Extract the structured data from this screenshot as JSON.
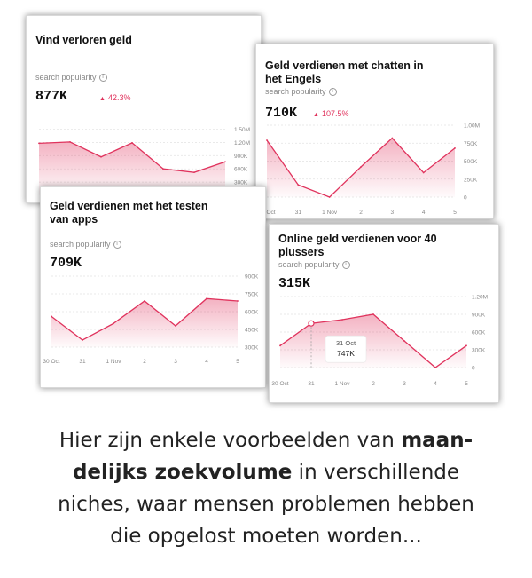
{
  "cards": [
    {
      "title": "Vind verloren geld",
      "metric_label": "search popularity",
      "value": "877K",
      "change": "42.3%",
      "chart_data": {
        "type": "area",
        "title": "Vind verloren geld",
        "y_tick_labels": [
          "1.50M",
          "1.20M",
          "900K",
          "600K",
          "300K"
        ],
        "y_ticks": [
          1500000,
          1200000,
          900000,
          600000,
          300000
        ],
        "ylim": [
          0,
          1650000
        ],
        "x_tick_labels": [],
        "x": [
          0,
          1,
          2,
          3,
          4,
          5,
          6
        ],
        "values": [
          1180000,
          1210000,
          870000,
          1190000,
          600000,
          520000,
          760000
        ],
        "color": "#e0335d",
        "grid": true
      }
    },
    {
      "title": "Geld verdienen met chatten in het Engels",
      "metric_label": "search popularity",
      "value": "710K",
      "change": "107.5%",
      "chart_data": {
        "type": "area",
        "title": "Geld verdienen met chatten in het Engels",
        "y_tick_labels": [
          "1.00M",
          "750K",
          "500K",
          "250K",
          "0"
        ],
        "y_ticks": [
          1000000,
          750000,
          500000,
          250000,
          0
        ],
        "ylim": [
          0,
          1000000
        ],
        "x_tick_labels": [
          "30 Oct",
          "31",
          "1 Nov",
          "2",
          "3",
          "4",
          "5"
        ],
        "x": [
          0,
          1,
          2,
          3,
          4,
          5,
          6
        ],
        "values": [
          790000,
          170000,
          0,
          420000,
          820000,
          340000,
          680000
        ],
        "color": "#e0335d",
        "grid": true
      }
    },
    {
      "title": "Geld verdienen met het testen van apps",
      "metric_label": "search popularity",
      "value": "709K",
      "change": "",
      "chart_data": {
        "type": "area",
        "title": "Geld verdienen met het testen van apps",
        "y_tick_labels": [
          "900K",
          "750K",
          "600K",
          "450K",
          "300K"
        ],
        "y_ticks": [
          900000,
          750000,
          600000,
          450000,
          300000
        ],
        "ylim": [
          300000,
          900000
        ],
        "x_tick_labels": [
          "30 Oct",
          "31",
          "1 Nov",
          "2",
          "3",
          "4",
          "5"
        ],
        "x": [
          0,
          1,
          2,
          3,
          4,
          5,
          6
        ],
        "values": [
          560000,
          360000,
          500000,
          690000,
          480000,
          710000,
          690000
        ],
        "color": "#e0335d",
        "grid": true
      }
    },
    {
      "title": "Online geld verdienen voor 40 plussers",
      "metric_label": "search popularity",
      "value": "315K",
      "change": "",
      "tooltip": {
        "date": "31 Oct",
        "value": "747K",
        "index": 1
      },
      "chart_data": {
        "type": "area",
        "title": "Online geld verdienen voor 40 plussers",
        "y_tick_labels": [
          "1.20M",
          "900K",
          "600K",
          "300K",
          "0"
        ],
        "y_ticks": [
          1200000,
          900000,
          600000,
          300000,
          0
        ],
        "ylim": [
          0,
          1200000
        ],
        "x_tick_labels": [
          "30 Oct",
          "31",
          "1 Nov",
          "2",
          "3",
          "4",
          "5"
        ],
        "x": [
          0,
          1,
          2,
          3,
          4,
          5,
          6
        ],
        "values": [
          370000,
          747000,
          810000,
          900000,
          450000,
          0,
          370000
        ],
        "color": "#e0335d",
        "grid": true
      }
    }
  ],
  "caption": {
    "line1_a": "Hier zijn enkele voorbeelden van ",
    "line1_b": "maan-",
    "line2_a": "delijks zoekvolume",
    "line2_b": " in verschillende",
    "line3": "niches, waar mensen problemen hebben",
    "line4": "die opgelost moeten worden..."
  }
}
